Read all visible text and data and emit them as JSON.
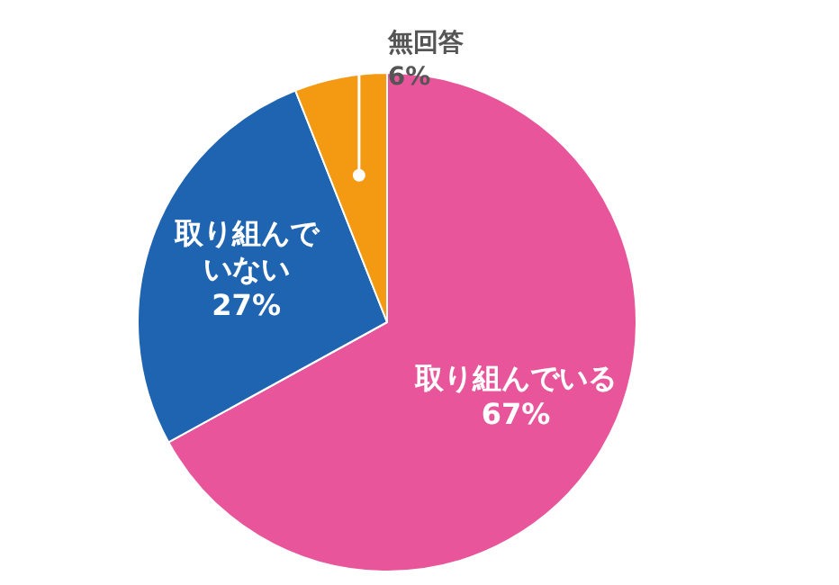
{
  "chart_data": {
    "type": "pie",
    "categories": [
      "取り組んでいる",
      "取り組んでいない",
      "無回答"
    ],
    "values": [
      67,
      27,
      6
    ],
    "colors": [
      "#e8559a",
      "#1f64b0",
      "#f39a12"
    ],
    "value_labels": [
      "67%",
      "27%",
      "6%"
    ]
  }
}
